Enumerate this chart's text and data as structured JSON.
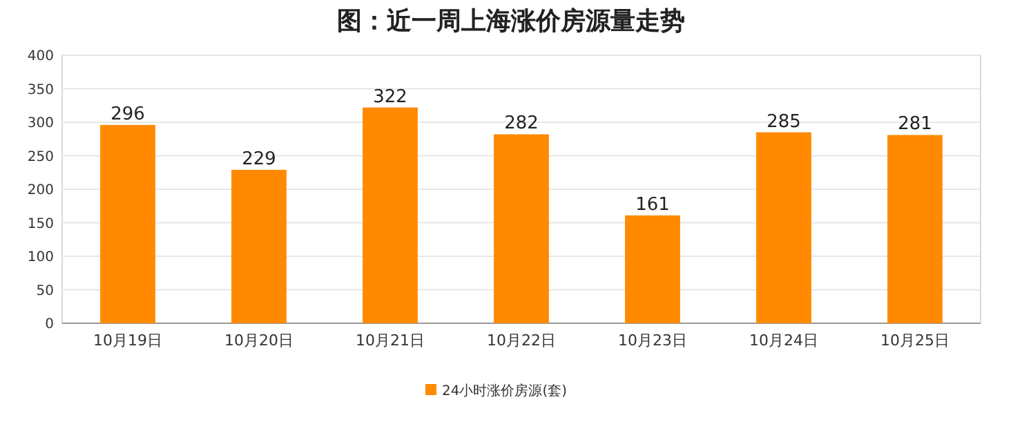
{
  "chart_data": {
    "type": "bar",
    "title": "图：近一周上海涨价房源量走势",
    "categories": [
      "10月19日",
      "10月20日",
      "10月21日",
      "10月22日",
      "10月23日",
      "10月24日",
      "10月25日"
    ],
    "series": [
      {
        "name": "24小时涨价房源(套)",
        "color": "#ff8a00",
        "values": [
          296,
          229,
          322,
          282,
          161,
          285,
          281
        ]
      }
    ],
    "ylim": [
      0,
      400
    ],
    "yticks": [
      0,
      50,
      100,
      150,
      200,
      250,
      300,
      350,
      400
    ],
    "grid": "y",
    "data_labels": true,
    "legend": "bottom"
  }
}
